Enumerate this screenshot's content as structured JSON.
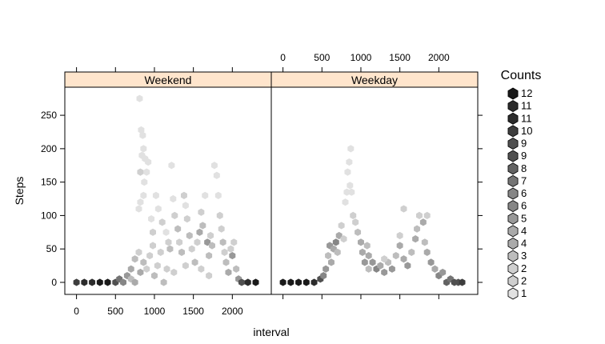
{
  "chart_data": {
    "type": "hexbin",
    "xlabel": "interval",
    "ylabel": "Steps",
    "xlim": [
      -150,
      2500
    ],
    "ylim": [
      -18,
      292
    ],
    "x_ticks": [
      0,
      500,
      1000,
      1500,
      2000
    ],
    "y_ticks": [
      0,
      50,
      100,
      150,
      200,
      250
    ],
    "panels": [
      {
        "name": "Weekend",
        "cells": [
          [
            0,
            0,
            10
          ],
          [
            100,
            0,
            11
          ],
          [
            200,
            0,
            11
          ],
          [
            300,
            0,
            12
          ],
          [
            400,
            0,
            12
          ],
          [
            500,
            0,
            9
          ],
          [
            550,
            5,
            7
          ],
          [
            600,
            0,
            6
          ],
          [
            650,
            10,
            5
          ],
          [
            700,
            20,
            4
          ],
          [
            750,
            35,
            3
          ],
          [
            800,
            45,
            2
          ],
          [
            700,
            5,
            3
          ],
          [
            750,
            0,
            4
          ],
          [
            820,
            15,
            4
          ],
          [
            860,
            30,
            3
          ],
          [
            900,
            20,
            2
          ],
          [
            940,
            40,
            2
          ],
          [
            980,
            55,
            2
          ],
          [
            1000,
            10,
            3
          ],
          [
            1040,
            25,
            2
          ],
          [
            1080,
            45,
            2
          ],
          [
            1120,
            0,
            3
          ],
          [
            810,
            275,
            1
          ],
          [
            830,
            228,
            1
          ],
          [
            850,
            220,
            1
          ],
          [
            860,
            200,
            1
          ],
          [
            840,
            190,
            1
          ],
          [
            820,
            165,
            2
          ],
          [
            870,
            150,
            1
          ],
          [
            860,
            130,
            1
          ],
          [
            820,
            120,
            1
          ],
          [
            800,
            110,
            1
          ],
          [
            880,
            185,
            1
          ],
          [
            900,
            165,
            1
          ],
          [
            920,
            180,
            1
          ],
          [
            960,
            95,
            1
          ],
          [
            980,
            75,
            2
          ],
          [
            1020,
            130,
            1
          ],
          [
            1050,
            110,
            1
          ],
          [
            1100,
            90,
            2
          ],
          [
            1150,
            75,
            1
          ],
          [
            1180,
            60,
            2
          ],
          [
            1200,
            50,
            3
          ],
          [
            1220,
            175,
            1
          ],
          [
            1240,
            125,
            1
          ],
          [
            1260,
            100,
            2
          ],
          [
            1300,
            80,
            3
          ],
          [
            1320,
            60,
            2
          ],
          [
            1350,
            45,
            3
          ],
          [
            1380,
            130,
            2
          ],
          [
            1400,
            115,
            1
          ],
          [
            1420,
            95,
            2
          ],
          [
            1450,
            70,
            3
          ],
          [
            1480,
            50,
            2
          ],
          [
            1520,
            30,
            3
          ],
          [
            1550,
            60,
            2
          ],
          [
            1580,
            75,
            4
          ],
          [
            1600,
            105,
            2
          ],
          [
            1620,
            85,
            3
          ],
          [
            1650,
            130,
            1
          ],
          [
            1680,
            60,
            5
          ],
          [
            1700,
            40,
            3
          ],
          [
            1720,
            70,
            2
          ],
          [
            1740,
            55,
            3
          ],
          [
            1770,
            175,
            1
          ],
          [
            1800,
            160,
            1
          ],
          [
            1820,
            130,
            1
          ],
          [
            1840,
            100,
            2
          ],
          [
            1860,
            80,
            2
          ],
          [
            1880,
            60,
            3
          ],
          [
            1900,
            45,
            2
          ],
          [
            1920,
            30,
            3
          ],
          [
            1950,
            15,
            4
          ],
          [
            1980,
            50,
            2
          ],
          [
            2000,
            40,
            5
          ],
          [
            2020,
            60,
            2
          ],
          [
            2050,
            20,
            3
          ],
          [
            2080,
            5,
            5
          ],
          [
            2120,
            0,
            9
          ],
          [
            2200,
            0,
            11
          ],
          [
            2300,
            0,
            12
          ],
          [
            1160,
            20,
            2
          ],
          [
            1250,
            15,
            2
          ],
          [
            1400,
            25,
            2
          ],
          [
            1600,
            20,
            2
          ],
          [
            1700,
            10,
            2
          ]
        ]
      },
      {
        "name": "Weekday",
        "cells": [
          [
            0,
            0,
            12
          ],
          [
            100,
            0,
            12
          ],
          [
            200,
            0,
            12
          ],
          [
            300,
            0,
            12
          ],
          [
            400,
            0,
            11
          ],
          [
            480,
            5,
            9
          ],
          [
            520,
            10,
            6
          ],
          [
            550,
            20,
            5
          ],
          [
            580,
            40,
            3
          ],
          [
            600,
            55,
            5
          ],
          [
            620,
            30,
            4
          ],
          [
            650,
            50,
            4
          ],
          [
            680,
            60,
            6
          ],
          [
            700,
            45,
            3
          ],
          [
            720,
            70,
            4
          ],
          [
            750,
            85,
            2
          ],
          [
            780,
            65,
            2
          ],
          [
            800,
            120,
            1
          ],
          [
            820,
            135,
            1
          ],
          [
            830,
            165,
            1
          ],
          [
            850,
            180,
            1
          ],
          [
            870,
            200,
            1
          ],
          [
            860,
            145,
            1
          ],
          [
            880,
            135,
            1
          ],
          [
            900,
            100,
            2
          ],
          [
            930,
            90,
            2
          ],
          [
            960,
            75,
            3
          ],
          [
            1000,
            60,
            4
          ],
          [
            1020,
            45,
            4
          ],
          [
            1050,
            30,
            5
          ],
          [
            1080,
            55,
            3
          ],
          [
            1100,
            40,
            4
          ],
          [
            1150,
            30,
            5
          ],
          [
            1200,
            20,
            6
          ],
          [
            1250,
            25,
            4
          ],
          [
            1300,
            15,
            5
          ],
          [
            1350,
            30,
            3
          ],
          [
            1400,
            20,
            5
          ],
          [
            1450,
            40,
            3
          ],
          [
            1500,
            55,
            4
          ],
          [
            1550,
            35,
            4
          ],
          [
            1600,
            25,
            5
          ],
          [
            1650,
            45,
            3
          ],
          [
            1700,
            65,
            4
          ],
          [
            1720,
            80,
            3
          ],
          [
            1750,
            100,
            2
          ],
          [
            1800,
            90,
            4
          ],
          [
            1820,
            60,
            3
          ],
          [
            1850,
            45,
            4
          ],
          [
            1900,
            30,
            5
          ],
          [
            1950,
            20,
            4
          ],
          [
            2000,
            10,
            6
          ],
          [
            2050,
            15,
            5
          ],
          [
            2100,
            0,
            8
          ],
          [
            2150,
            5,
            7
          ],
          [
            2200,
            0,
            9
          ],
          [
            2250,
            0,
            9
          ],
          [
            2300,
            0,
            10
          ],
          [
            1300,
            35,
            2
          ],
          [
            1100,
            20,
            3
          ],
          [
            1550,
            110,
            2
          ],
          [
            1500,
            70,
            2
          ],
          [
            1850,
            100,
            2
          ]
        ]
      }
    ],
    "legend": {
      "title": "Counts",
      "placement": "right",
      "entries": [
        "12",
        "11",
        "11",
        "10",
        "9",
        "9",
        "8",
        "7",
        "6",
        "6",
        "5",
        "4",
        "4",
        "3",
        "2",
        "2",
        "1"
      ]
    },
    "top_axis_ticks": [
      "0",
      "500",
      "1000",
      "1500",
      "2000"
    ],
    "bottom_axis_ticks": [
      "0",
      "500",
      "1000",
      "1500",
      "2000"
    ],
    "left_axis_ticks": [
      "0",
      "50",
      "100",
      "150",
      "200",
      "250"
    ]
  }
}
